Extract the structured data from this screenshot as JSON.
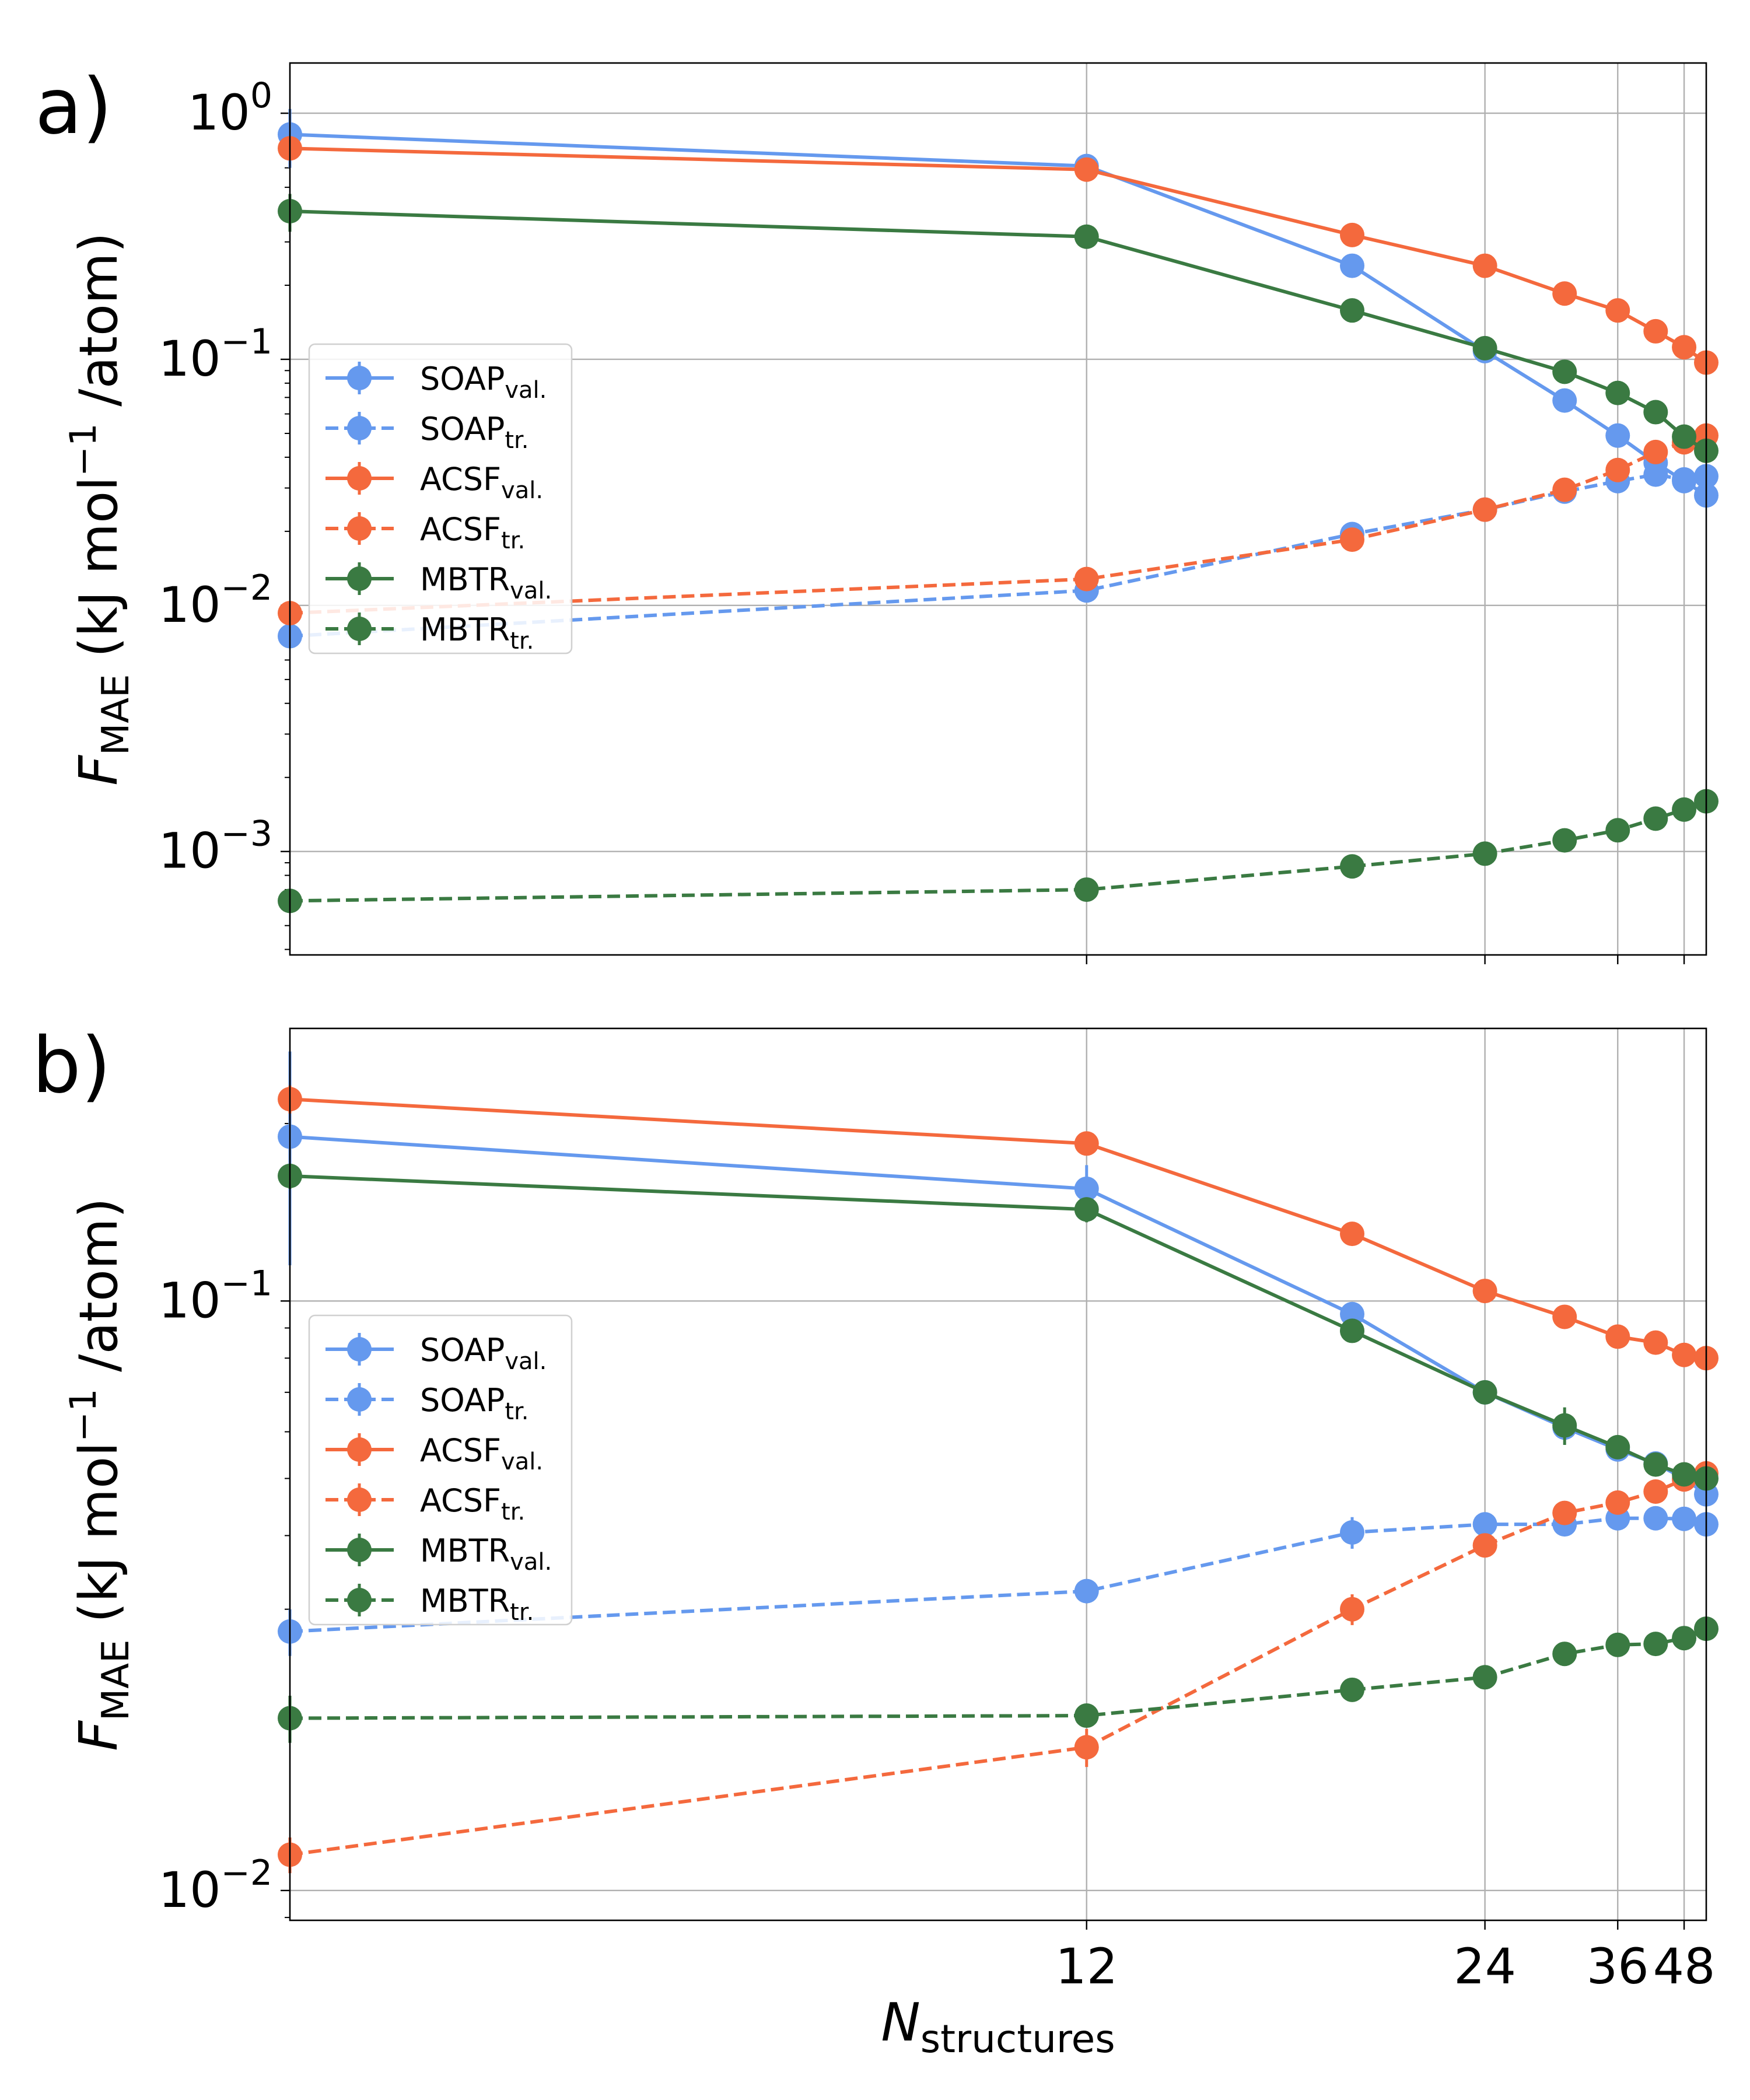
{
  "figure": {
    "xlabel_main": "N",
    "xlabel_sub": "structures",
    "x_ticks": [
      12,
      24,
      36,
      48
    ],
    "x_tick_labels": [
      "12",
      "24",
      "36",
      "48"
    ],
    "xscale": "reciprocal",
    "xlim": [
      6,
      54
    ],
    "ylabel": {
      "main": "F",
      "sub": "MAE",
      "rest": "(kJ mol",
      "sup": "−1",
      "tail": " /atom)"
    },
    "colors": {
      "SOAP": "#6599EE",
      "ACSF": "#F4693D",
      "MBTR": "#3A7A42"
    }
  },
  "chart_data": [
    {
      "type": "line",
      "panel_label": "a)",
      "yscale": "log",
      "ylim": [
        0.00038,
        1.6
      ],
      "grid": true,
      "legend_location": "center-left",
      "y_ticks": [
        {
          "value": 1,
          "base": "10",
          "exp": "0"
        },
        {
          "value": 0.1,
          "base": "10",
          "exp": "−1"
        },
        {
          "value": 0.01,
          "base": "10",
          "exp": "−2"
        },
        {
          "value": 0.001,
          "base": "10",
          "exp": "−3"
        }
      ],
      "x": [
        6,
        12,
        18,
        24,
        30,
        36,
        42,
        48,
        54
      ],
      "series": [
        {
          "name": "SOAP",
          "subscript": "val.",
          "color": "#6599EE",
          "linestyle": "solid",
          "values": [
            0.82,
            0.61,
            0.24,
            0.108,
            0.068,
            0.049,
            0.038,
            0.032,
            0.028
          ],
          "errors": [
            0.22,
            0.04,
            0.02,
            0.005,
            0.003,
            0.002,
            0.002,
            0.001,
            0.001
          ]
        },
        {
          "name": "SOAP",
          "subscript": "tr.",
          "color": "#6599EE",
          "linestyle": "dashed",
          "values": [
            0.0075,
            0.0115,
            0.0195,
            0.0245,
            0.029,
            0.032,
            0.034,
            0.0325,
            0.0335
          ],
          "errors": [
            0.0006,
            0.0005,
            0.0006,
            0.0005,
            0.0005,
            0.0005,
            0.0005,
            0.0005,
            0.0005
          ]
        },
        {
          "name": "ACSF",
          "subscript": "val.",
          "color": "#F4693D",
          "linestyle": "solid",
          "values": [
            0.72,
            0.59,
            0.32,
            0.24,
            0.185,
            0.158,
            0.13,
            0.112,
            0.097
          ],
          "errors": [
            0.05,
            0.03,
            0.01,
            0.008,
            0.005,
            0.004,
            0.003,
            0.003,
            0.002
          ]
        },
        {
          "name": "ACSF",
          "subscript": "tr.",
          "color": "#F4693D",
          "linestyle": "dashed",
          "values": [
            0.0093,
            0.0128,
            0.0185,
            0.0245,
            0.0295,
            0.0355,
            0.042,
            0.046,
            0.049
          ],
          "errors": [
            0.0005,
            0.0004,
            0.0005,
            0.0005,
            0.0005,
            0.0006,
            0.0006,
            0.0006,
            0.0007
          ]
        },
        {
          "name": "MBTR",
          "subscript": "val.",
          "color": "#3A7A42",
          "linestyle": "solid",
          "values": [
            0.4,
            0.315,
            0.158,
            0.111,
            0.089,
            0.073,
            0.061,
            0.0485,
            0.0425
          ],
          "errors": [
            0.07,
            0.01,
            0.005,
            0.004,
            0.003,
            0.002,
            0.002,
            0.002,
            0.002
          ]
        },
        {
          "name": "MBTR",
          "subscript": "tr.",
          "color": "#3A7A42",
          "linestyle": "dashed",
          "values": [
            0.00063,
            0.0007,
            0.00087,
            0.00098,
            0.00111,
            0.00122,
            0.00136,
            0.00148,
            0.0016
          ],
          "errors": [
            2e-05,
            2e-05,
            2e-05,
            3e-05,
            3e-05,
            3e-05,
            3e-05,
            3e-05,
            4e-05
          ]
        }
      ]
    },
    {
      "type": "line",
      "panel_label": "b)",
      "yscale": "log",
      "ylim": [
        0.0089,
        0.29
      ],
      "grid": true,
      "legend_location": "center-left",
      "y_ticks": [
        {
          "value": 0.1,
          "base": "10",
          "exp": "−1"
        },
        {
          "value": 0.01,
          "base": "10",
          "exp": "−2"
        }
      ],
      "x": [
        6,
        12,
        18,
        24,
        30,
        36,
        42,
        48,
        54
      ],
      "series": [
        {
          "name": "SOAP",
          "subscript": "val.",
          "color": "#6599EE",
          "linestyle": "solid",
          "values": [
            0.19,
            0.155,
            0.095,
            0.07,
            0.061,
            0.056,
            0.053,
            0.05,
            0.047
          ],
          "errors": [
            0.075,
            0.015,
            0.004,
            0.002,
            0.002,
            0.0015,
            0.0015,
            0.001,
            0.001
          ]
        },
        {
          "name": "SOAP",
          "subscript": "tr.",
          "color": "#6599EE",
          "linestyle": "dashed",
          "values": [
            0.0275,
            0.0322,
            0.0405,
            0.0418,
            0.0418,
            0.0428,
            0.0428,
            0.0427,
            0.0418
          ],
          "errors": [
            0.0025,
            0.0015,
            0.0025,
            0.0012,
            0.001,
            0.001,
            0.001,
            0.001,
            0.001
          ]
        },
        {
          "name": "ACSF",
          "subscript": "val.",
          "color": "#F4693D",
          "linestyle": "solid",
          "values": [
            0.22,
            0.185,
            0.13,
            0.104,
            0.094,
            0.087,
            0.085,
            0.081,
            0.08
          ],
          "errors": [
            0.012,
            0.005,
            0.003,
            0.002,
            0.002,
            0.0015,
            0.0015,
            0.0015,
            0.0015
          ]
        },
        {
          "name": "ACSF",
          "subscript": "tr.",
          "color": "#F4693D",
          "linestyle": "dashed",
          "values": [
            0.0115,
            0.0175,
            0.03,
            0.0385,
            0.0437,
            0.0455,
            0.0475,
            0.0498,
            0.051
          ],
          "errors": [
            0.0008,
            0.0013,
            0.0018,
            0.0012,
            0.0012,
            0.001,
            0.001,
            0.001,
            0.001
          ]
        },
        {
          "name": "MBTR",
          "subscript": "val.",
          "color": "#3A7A42",
          "linestyle": "solid",
          "values": [
            0.163,
            0.143,
            0.089,
            0.07,
            0.0615,
            0.0565,
            0.0528,
            0.0508,
            0.05
          ],
          "errors": [
            0.008,
            0.007,
            0.003,
            0.002,
            0.0045,
            0.0015,
            0.0015,
            0.001,
            0.001
          ]
        },
        {
          "name": "MBTR",
          "subscript": "tr.",
          "color": "#3A7A42",
          "linestyle": "dashed",
          "values": [
            0.0196,
            0.0198,
            0.0219,
            0.023,
            0.0252,
            0.0261,
            0.0262,
            0.0268,
            0.0278
          ],
          "errors": [
            0.0018,
            0.0007,
            0.0005,
            0.0004,
            0.0005,
            0.0004,
            0.0004,
            0.0004,
            0.0004
          ]
        }
      ]
    }
  ]
}
